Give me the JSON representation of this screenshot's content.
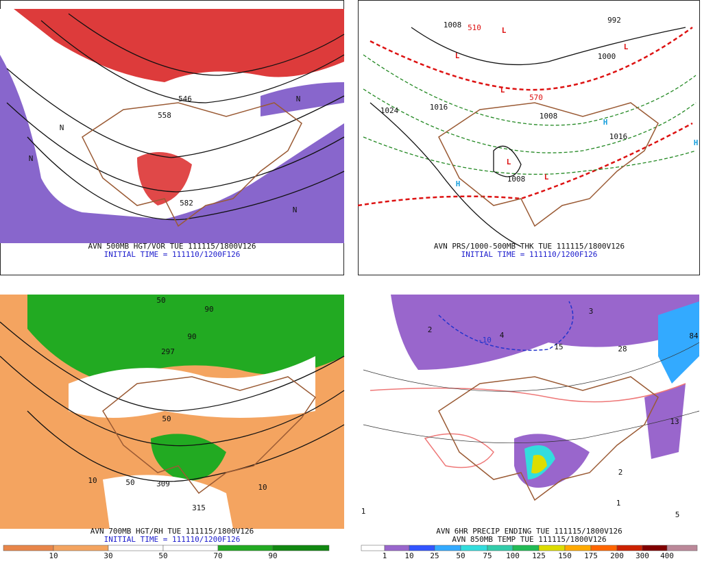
{
  "panels": [
    {
      "title": "AVN 500MB HGT/VOR TUE 111115/1800V126",
      "subtitle": "INITIAL TIME = 111110/1200F126",
      "map_labels": [
        "546",
        "558",
        "582",
        "N",
        "N",
        "N",
        "N"
      ]
    },
    {
      "title": "AVN PRS/1000-500MB THK TUE 111115/1800V126",
      "subtitle": "INITIAL TIME = 111110/1200F126",
      "map_labels": [
        "L",
        "L",
        "L",
        "L",
        "L",
        "L",
        "H",
        "H",
        "H",
        "1024",
        "1016",
        "1008",
        "1008",
        "1000",
        "992",
        "1016",
        "510",
        "570",
        "1008"
      ]
    },
    {
      "title": "AVN 700MB HGT/RH TUE 111115/1800V126",
      "subtitle": "INITIAL TIME = 111110/1200F126",
      "map_labels": [
        "50",
        "90",
        "297",
        "309",
        "315",
        "10",
        "50",
        "50",
        "90",
        "10"
      ],
      "colorbar_labels": [
        "10",
        "30",
        "50",
        "70",
        "90"
      ]
    },
    {
      "title": "AVN 6HR PRECIP ENDING TUE 111115/1800V126",
      "subtitle": "AVN 850MB TEMP TUE 111115/1800V126",
      "map_labels": [
        "2",
        "4",
        "15",
        "28",
        "84",
        "13",
        "1",
        "2",
        "-10",
        "5",
        "3",
        "1"
      ],
      "colorbar_labels": [
        "1",
        "10",
        "25",
        "50",
        "75",
        "100",
        "125",
        "150",
        "175",
        "200",
        "300",
        "400"
      ]
    }
  ]
}
